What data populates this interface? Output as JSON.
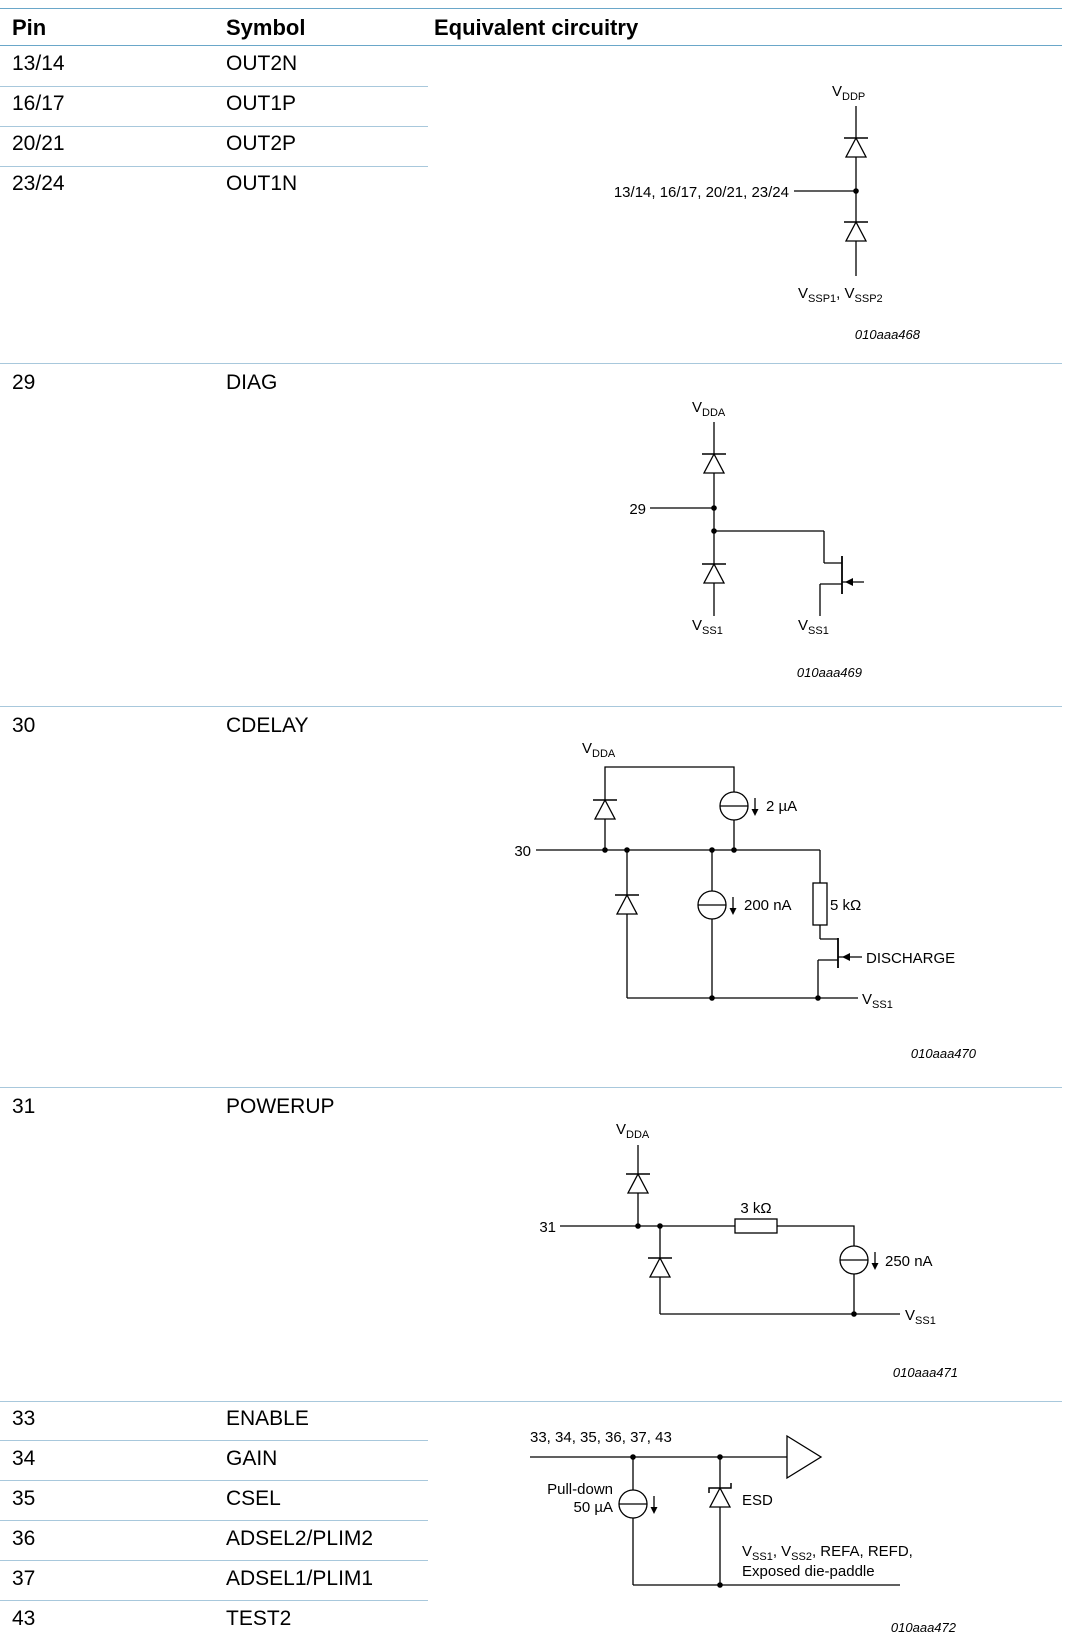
{
  "header": {
    "pin": "Pin",
    "symbol": "Symbol",
    "circuit": "Equivalent circuitry"
  },
  "groups": [
    {
      "rows": [
        {
          "pin": "13/14",
          "symbol": "OUT2N"
        },
        {
          "pin": "16/17",
          "symbol": "OUT1P"
        },
        {
          "pin": "20/21",
          "symbol": "OUT2P"
        },
        {
          "pin": "23/24",
          "symbol": "OUT1N"
        }
      ],
      "supply_top": {
        "base": "V",
        "sub": "DDP"
      },
      "pin_label": "13/14, 16/17, 20/21, 23/24",
      "supply_bottom": {
        "base1": "V",
        "sub1": "SSP1",
        "sep": ", ",
        "base2": "V",
        "sub2": "SSP2"
      },
      "figure_id": "010aaa468"
    },
    {
      "rows": [
        {
          "pin": "29",
          "symbol": "DIAG"
        }
      ],
      "supply_top": {
        "base": "V",
        "sub": "DDA"
      },
      "pin_label": "29",
      "supply_bottom_left": {
        "base": "V",
        "sub": "SS1"
      },
      "supply_bottom_right": {
        "base": "V",
        "sub": "SS1"
      },
      "figure_id": "010aaa469"
    },
    {
      "rows": [
        {
          "pin": "30",
          "symbol": "CDELAY"
        }
      ],
      "supply_top": {
        "base": "V",
        "sub": "DDA"
      },
      "pin_label": "30",
      "current_source_1": "2 µA",
      "current_source_2": "200 nA",
      "resistor": "5 kΩ",
      "control": "DISCHARGE",
      "supply_bottom": {
        "base": "V",
        "sub": "SS1"
      },
      "figure_id": "010aaa470"
    },
    {
      "rows": [
        {
          "pin": "31",
          "symbol": "POWERUP"
        }
      ],
      "supply_top": {
        "base": "V",
        "sub": "DDA"
      },
      "pin_label": "31",
      "resistor": "3 kΩ",
      "current_source": "250 nA",
      "supply_bottom": {
        "base": "V",
        "sub": "SS1"
      },
      "figure_id": "010aaa471"
    },
    {
      "rows": [
        {
          "pin": "33",
          "symbol": "ENABLE"
        },
        {
          "pin": "34",
          "symbol": "GAIN"
        },
        {
          "pin": "35",
          "symbol": "CSEL"
        },
        {
          "pin": "36",
          "symbol": "ADSEL2/PLIM2"
        },
        {
          "pin": "37",
          "symbol": "ADSEL1/PLIM1"
        },
        {
          "pin": "43",
          "symbol": "TEST2"
        }
      ],
      "pin_label": "33, 34, 35, 36, 37, 43",
      "pulldown_line1": "Pull-down",
      "pulldown_line2": "50 µA",
      "esd": "ESD",
      "supply_line1": {
        "base1": "V",
        "sub1": "SS1",
        "sep": ", ",
        "base2": "V",
        "sub2": "SS2",
        "rest": ", REFA, REFD,"
      },
      "supply_line2": "Exposed die-paddle",
      "figure_id": "010aaa472"
    }
  ]
}
